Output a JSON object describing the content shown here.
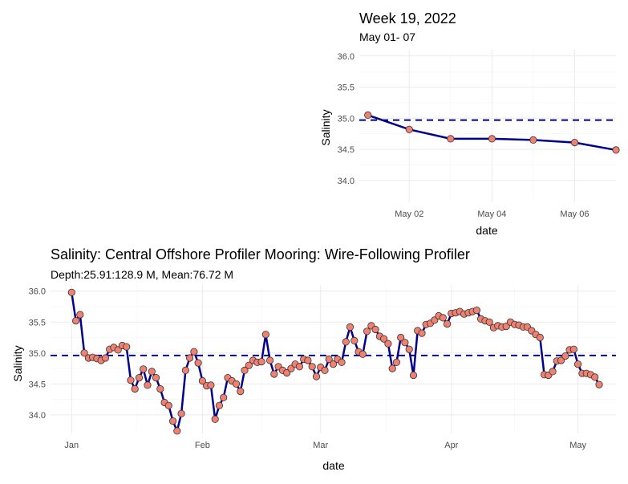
{
  "chart_data": [
    {
      "type": "line",
      "title": "Week 19, 2022",
      "subtitle": "May 01- 07",
      "xlabel": "date",
      "ylabel": "Salinity",
      "ylim": [
        33.65,
        36.1
      ],
      "xlim": [
        "2022-04-30T19:00",
        "2022-05-07T00:00"
      ],
      "y_ticks": [
        34.0,
        34.5,
        35.0,
        35.5,
        36.0
      ],
      "x_ticks": [
        {
          "date": "2022-05-02",
          "label": "May 02"
        },
        {
          "date": "2022-05-04",
          "label": "May 04"
        },
        {
          "date": "2022-05-06",
          "label": "May 06"
        }
      ],
      "mean_line": 34.97,
      "grid": true,
      "series": [
        {
          "x": [
            "2022-05-01",
            "2022-05-02",
            "2022-05-03",
            "2022-05-04",
            "2022-05-05",
            "2022-05-06",
            "2022-05-07"
          ],
          "y": [
            35.05,
            34.82,
            34.67,
            34.67,
            34.65,
            34.61,
            34.49
          ]
        }
      ]
    },
    {
      "type": "line",
      "title": "Salinity: Central Offshore Profiler Mooring: Wire-Following Profiler",
      "subtitle": "Depth:25.91:128.9 M, Mean:76.72 M",
      "xlabel": "date",
      "ylabel": "Salinity",
      "ylim": [
        33.7,
        36.1
      ],
      "xlim": [
        "2021-12-27",
        "2022-05-10"
      ],
      "y_ticks": [
        34.0,
        34.5,
        35.0,
        35.5,
        36.0
      ],
      "x_ticks": [
        {
          "date": "2022-01-01",
          "label": "Jan"
        },
        {
          "date": "2022-02-01",
          "label": "Feb"
        },
        {
          "date": "2022-03-01",
          "label": "Mar"
        },
        {
          "date": "2022-04-01",
          "label": "Apr"
        },
        {
          "date": "2022-05-01",
          "label": "May"
        }
      ],
      "mean_line": 34.96,
      "grid": true,
      "series": [
        {
          "start_date": "2022-01-01",
          "y": [
            35.98,
            35.52,
            35.62,
            35.0,
            34.92,
            34.93,
            34.91,
            34.88,
            34.92,
            35.06,
            35.09,
            35.05,
            35.12,
            35.1,
            34.56,
            34.42,
            34.6,
            34.74,
            34.48,
            34.7,
            34.6,
            34.42,
            34.2,
            34.15,
            33.9,
            33.74,
            34.02,
            34.72,
            34.92,
            35.02,
            34.84,
            34.55,
            34.47,
            34.48,
            33.93,
            34.15,
            34.28,
            34.6,
            34.55,
            34.5,
            34.38,
            34.72,
            34.8,
            34.88,
            34.85,
            34.86,
            35.3,
            34.88,
            34.66,
            34.78,
            34.72,
            34.68,
            34.75,
            34.82,
            34.78,
            34.9,
            34.88,
            34.78,
            34.62,
            34.77,
            34.72,
            34.9,
            34.82,
            34.9,
            34.85,
            35.18,
            35.42,
            35.2,
            35.02,
            34.98,
            35.35,
            35.44,
            35.38,
            35.27,
            35.23,
            35.15,
            34.75,
            34.85,
            35.25,
            35.17,
            35.06,
            34.64,
            35.36,
            35.32,
            35.46,
            35.48,
            35.53,
            35.6,
            35.57,
            35.47,
            35.64,
            35.65,
            35.67,
            35.63,
            35.65,
            35.67,
            35.69,
            35.55,
            35.52,
            35.5,
            35.41,
            35.44,
            35.42,
            35.43,
            35.5,
            35.46,
            35.45,
            35.42,
            35.42,
            35.36,
            35.3,
            35.25,
            34.65,
            34.64,
            34.7,
            34.87,
            34.88,
            34.95,
            35.05,
            35.06,
            34.82,
            34.67,
            34.67,
            34.65,
            34.61,
            34.49
          ]
        }
      ]
    }
  ]
}
